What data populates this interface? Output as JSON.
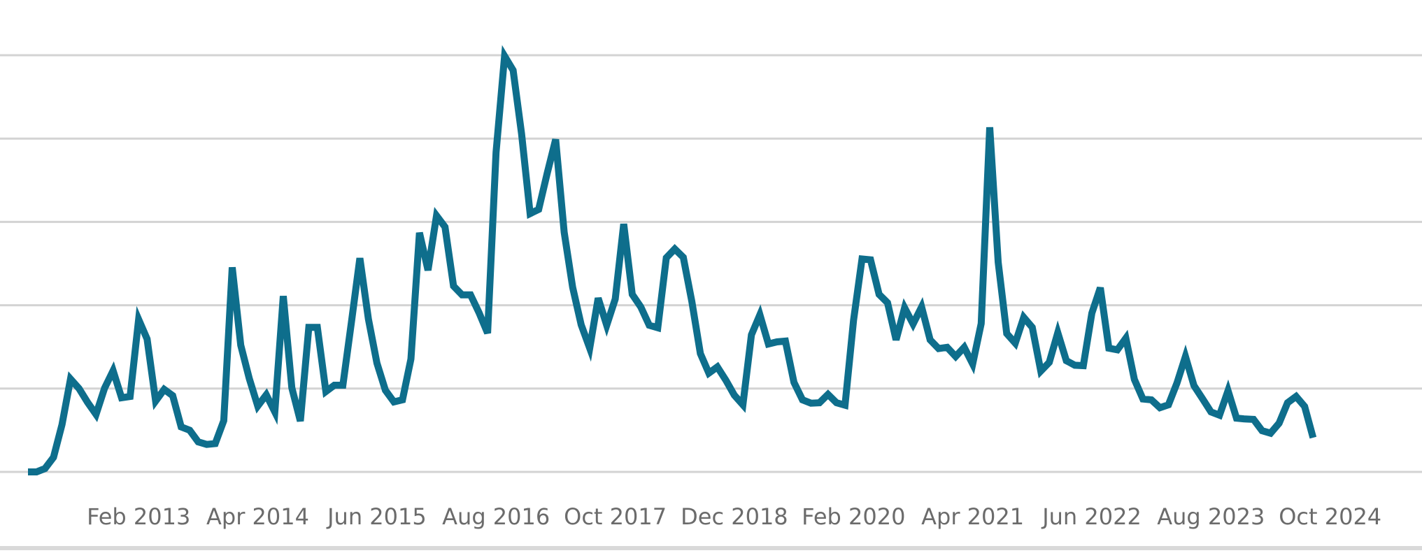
{
  "chart_data": {
    "type": "line",
    "title": "",
    "xlabel": "",
    "ylabel": "",
    "ylim": [
      0,
      100
    ],
    "grid": true,
    "y_tick_labels_shown": false,
    "series_color": "#0e6e8c",
    "x_tick_labels": [
      "Feb 2013",
      "Apr 2014",
      "Jun 2015",
      "Aug 2016",
      "Oct 2017",
      "Dec 2018",
      "Feb 2020",
      "Apr 2021",
      "Jun 2022",
      "Aug 2023",
      "Oct 2024"
    ],
    "x_start": "2012-01",
    "x_end": "2024-12",
    "series": [
      {
        "values": [
          0,
          0,
          0.8,
          3.5,
          11.4,
          22.3,
          20,
          16.7,
          13.8,
          20.1,
          24.3,
          17.8,
          18.1,
          36.6,
          31.9,
          17,
          19.8,
          18.3,
          10.8,
          10,
          7.2,
          6.6,
          6.8,
          12.3,
          49.1,
          30.4,
          22.4,
          15.8,
          18.5,
          14.4,
          42.2,
          20.2,
          12.2,
          34.7,
          34.7,
          19.3,
          20.8,
          20.8,
          35.9,
          51.3,
          36.7,
          26.1,
          19.6,
          16.8,
          17.3,
          27.1,
          57.4,
          48.4,
          61.5,
          58.8,
          44.6,
          42.5,
          42.5,
          38.2,
          33.3,
          76.7,
          99.8,
          96.4,
          81.1,
          62,
          63,
          71.6,
          79.8,
          57.5,
          44.3,
          35.3,
          29.7,
          41.7,
          35.2,
          41.5,
          59.5,
          42.6,
          39.6,
          35.2,
          34.6,
          51.4,
          53.5,
          51.5,
          40.9,
          28.4,
          23.7,
          25.2,
          22,
          18.4,
          16.1,
          32.9,
          37.7,
          30.7,
          31.2,
          31.4,
          21.5,
          17.3,
          16.5,
          16.6,
          18.6,
          16.6,
          16,
          36.4,
          51.1,
          50.9,
          42.6,
          40.6,
          31.7,
          39.4,
          35.5,
          39.6,
          31.7,
          29.6,
          29.9,
          27.7,
          29.9,
          25.9,
          35.6,
          82.7,
          50.3,
          33.2,
          30.9,
          37.1,
          34.7,
          24.2,
          26.3,
          33.4,
          26.7,
          25.6,
          25.5,
          38.1,
          44.2,
          29.7,
          29.3,
          32.1,
          22.2,
          17.5,
          17.3,
          15.4,
          16.1,
          21.3,
          27.7,
          20.7,
          17.6,
          14.4,
          13.6,
          19.5,
          12.9,
          12.7,
          12.6,
          9.9,
          9.3,
          11.7,
          16.6,
          18.1,
          15.7,
          8.2
        ]
      }
    ]
  }
}
